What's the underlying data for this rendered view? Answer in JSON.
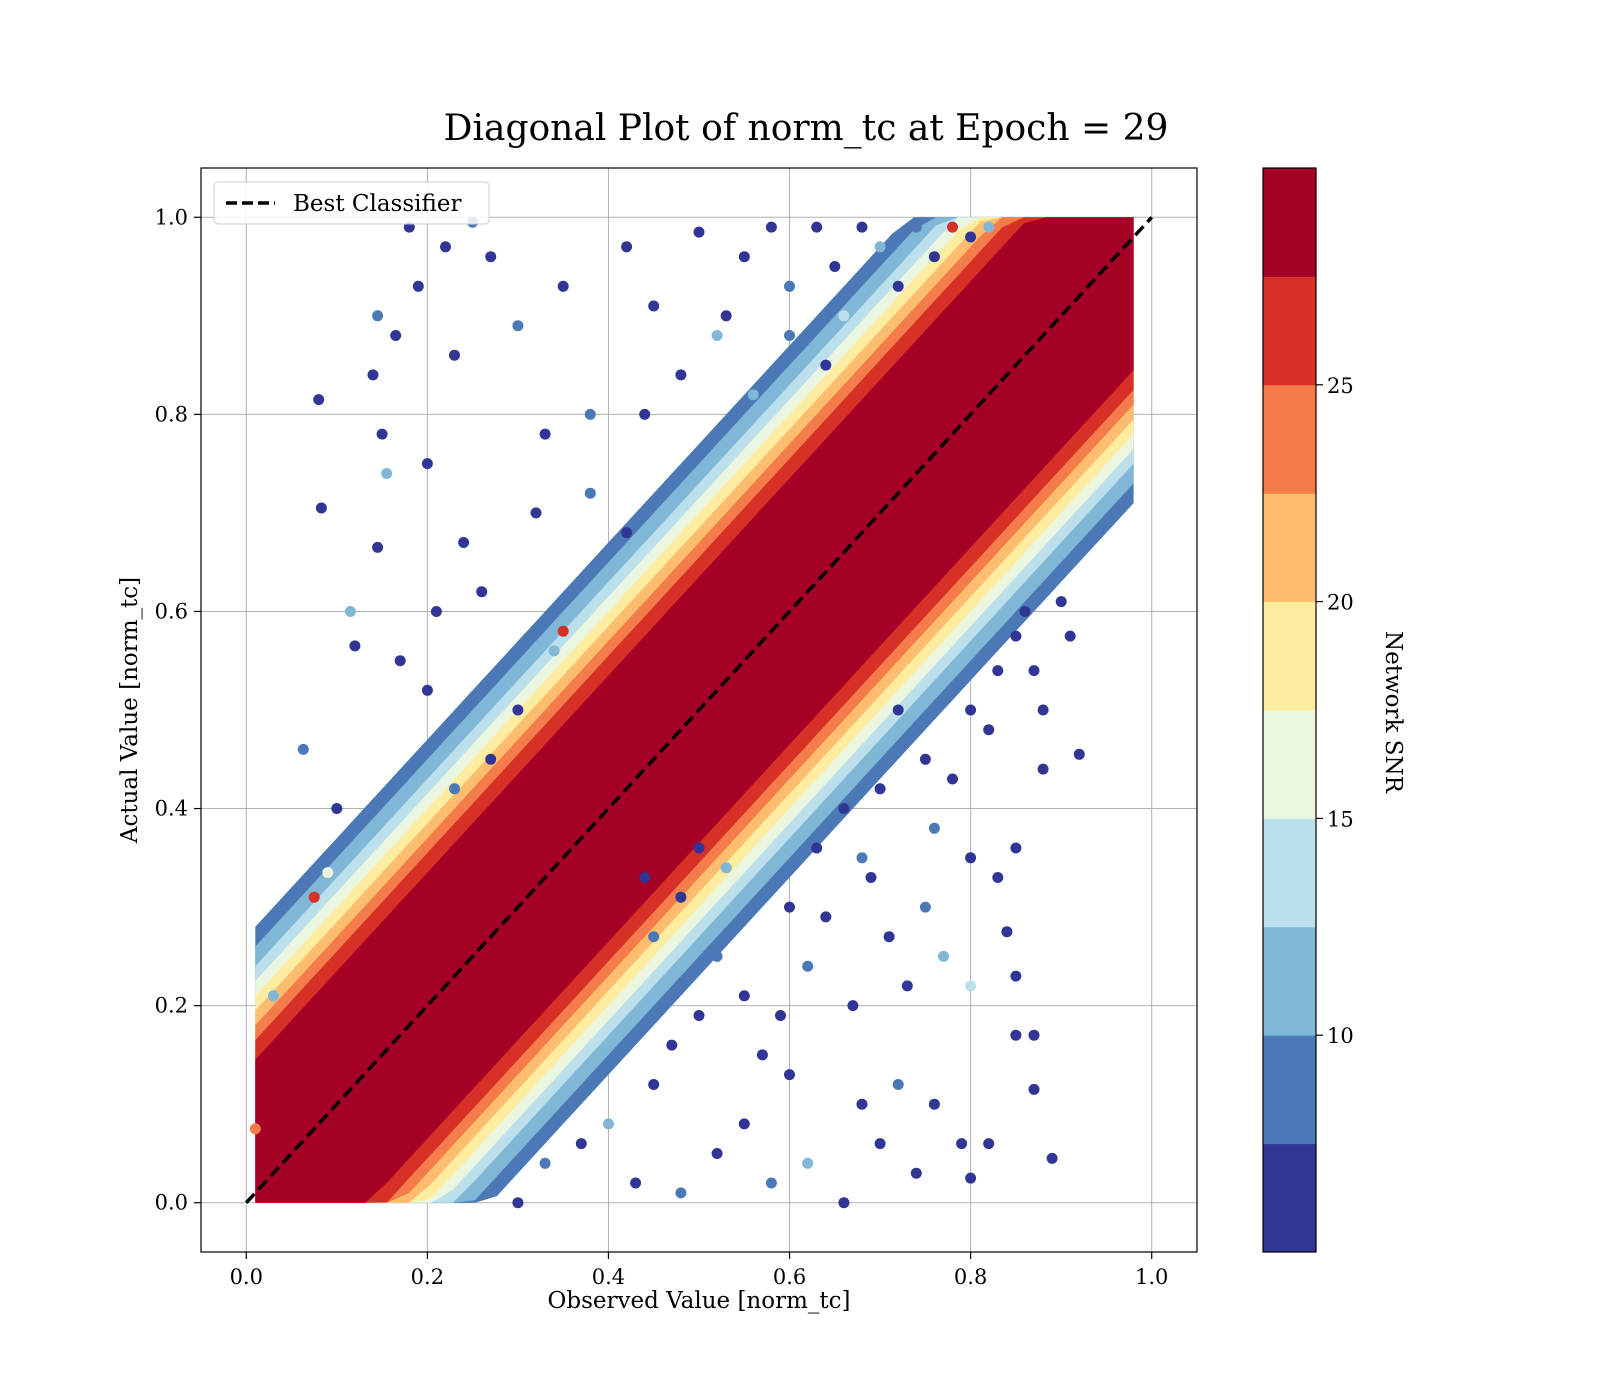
{
  "chart_data": {
    "type": "scatter",
    "title": "Diagonal Plot of norm_tc at Epoch = 29",
    "xlabel": "Observed Value [norm_tc]",
    "ylabel": "Actual Value [norm_tc]",
    "xlim": [
      -0.05,
      1.05
    ],
    "ylim": [
      -0.05,
      1.05
    ],
    "xticks": [
      "0.0",
      "0.2",
      "0.4",
      "0.6",
      "0.8",
      "1.0"
    ],
    "yticks": [
      "0.0",
      "0.2",
      "0.4",
      "0.6",
      "0.8",
      "1.0"
    ],
    "grid": true,
    "legend": {
      "placement": "upper-left",
      "entries": [
        "Best Classifier"
      ]
    },
    "reference_line": {
      "name": "Best Classifier",
      "style": "dashed",
      "color": "#000000",
      "x": [
        0.0,
        1.0
      ],
      "y": [
        0.0,
        1.0
      ]
    },
    "colorbar": {
      "label": "Network SNR",
      "range": [
        4,
        30
      ],
      "ticks": [
        "10",
        "15",
        "20",
        "25"
      ],
      "tick_values": [
        10,
        15,
        20,
        25
      ],
      "bins": [
        {
          "from": 4,
          "to": 6.5,
          "color": "#313695"
        },
        {
          "from": 6.5,
          "to": 9,
          "color": "#4a79b6"
        },
        {
          "from": 9,
          "to": 11.5,
          "color": "#80b6d6"
        },
        {
          "from": 11.5,
          "to": 14,
          "color": "#bce0eb"
        },
        {
          "from": 14,
          "to": 16.5,
          "color": "#eaf6e0"
        },
        {
          "from": 16.5,
          "to": 19,
          "color": "#feeca0"
        },
        {
          "from": 19,
          "to": 21.5,
          "color": "#fdbd6f"
        },
        {
          "from": 21.5,
          "to": 24,
          "color": "#f47c4a"
        },
        {
          "from": 24,
          "to": 26.5,
          "color": "#d73127"
        },
        {
          "from": 26.5,
          "to": 30,
          "color": "#a50026"
        }
      ]
    },
    "bands": [
      {
        "snr": 28,
        "x_low": 0.01,
        "x_high": 0.98,
        "halfwidth": 0.135,
        "color": "#a50026"
      },
      {
        "snr": 25,
        "halfwidth": 0.155,
        "color": "#d73127"
      },
      {
        "snr": 23,
        "halfwidth": 0.17,
        "color": "#f47c4a"
      },
      {
        "snr": 20,
        "halfwidth": 0.185,
        "color": "#fdbd6f"
      },
      {
        "snr": 18,
        "halfwidth": 0.2,
        "color": "#feeca0"
      },
      {
        "snr": 15,
        "halfwidth": 0.215,
        "color": "#eaf6e0"
      },
      {
        "snr": 13,
        "halfwidth": 0.23,
        "color": "#bce0eb"
      },
      {
        "snr": 10,
        "halfwidth": 0.25,
        "color": "#80b6d6"
      },
      {
        "snr": 8,
        "halfwidth": 0.27,
        "color": "#4a79b6"
      }
    ],
    "outlier_points": [
      [
        0.01,
        0.075,
        22
      ],
      [
        0.03,
        0.21,
        10
      ],
      [
        0.063,
        0.46,
        8
      ],
      [
        0.08,
        0.815,
        5
      ],
      [
        0.083,
        0.705,
        5
      ],
      [
        0.075,
        0.31,
        24
      ],
      [
        0.09,
        0.335,
        14
      ],
      [
        0.1,
        0.4,
        5
      ],
      [
        0.115,
        0.6,
        10
      ],
      [
        0.12,
        0.565,
        5
      ],
      [
        0.14,
        0.84,
        5
      ],
      [
        0.145,
        0.9,
        8
      ],
      [
        0.15,
        0.78,
        5
      ],
      [
        0.155,
        0.74,
        10
      ],
      [
        0.145,
        0.665,
        5
      ],
      [
        0.165,
        0.88,
        5
      ],
      [
        0.18,
        0.99,
        5
      ],
      [
        0.19,
        0.93,
        5
      ],
      [
        0.2,
        0.75,
        5
      ],
      [
        0.22,
        0.97,
        5
      ],
      [
        0.23,
        0.86,
        5
      ],
      [
        0.24,
        0.67,
        5
      ],
      [
        0.25,
        0.995,
        8
      ],
      [
        0.27,
        0.96,
        5
      ],
      [
        0.3,
        0.89,
        8
      ],
      [
        0.33,
        0.78,
        5
      ],
      [
        0.35,
        0.93,
        5
      ],
      [
        0.38,
        0.8,
        8
      ],
      [
        0.42,
        0.97,
        5
      ],
      [
        0.45,
        0.91,
        5
      ],
      [
        0.5,
        0.985,
        5
      ],
      [
        0.52,
        0.88,
        10
      ],
      [
        0.55,
        0.96,
        5
      ],
      [
        0.58,
        0.99,
        5
      ],
      [
        0.6,
        0.93,
        8
      ],
      [
        0.63,
        0.99,
        5
      ],
      [
        0.65,
        0.95,
        5
      ],
      [
        0.68,
        0.99,
        5
      ],
      [
        0.7,
        0.97,
        10
      ],
      [
        0.72,
        0.93,
        5
      ],
      [
        0.74,
        0.99,
        8
      ],
      [
        0.76,
        0.96,
        5
      ],
      [
        0.78,
        0.99,
        24
      ],
      [
        0.8,
        0.98,
        5
      ],
      [
        0.82,
        0.99,
        10
      ],
      [
        0.3,
        0.5,
        5
      ],
      [
        0.34,
        0.56,
        10
      ],
      [
        0.27,
        0.45,
        5
      ],
      [
        0.26,
        0.62,
        5
      ],
      [
        0.32,
        0.7,
        5
      ],
      [
        0.38,
        0.72,
        8
      ],
      [
        0.42,
        0.68,
        5
      ],
      [
        0.44,
        0.8,
        5
      ],
      [
        0.48,
        0.84,
        5
      ],
      [
        0.5,
        0.76,
        8
      ],
      [
        0.56,
        0.82,
        10
      ],
      [
        0.53,
        0.9,
        5
      ],
      [
        0.6,
        0.88,
        8
      ],
      [
        0.64,
        0.85,
        5
      ],
      [
        0.66,
        0.9,
        12
      ],
      [
        0.35,
        0.58,
        24
      ],
      [
        0.23,
        0.42,
        8
      ],
      [
        0.2,
        0.52,
        5
      ],
      [
        0.17,
        0.55,
        5
      ],
      [
        0.21,
        0.6,
        5
      ],
      [
        0.3,
        0.0,
        5
      ],
      [
        0.33,
        0.04,
        8
      ],
      [
        0.37,
        0.06,
        5
      ],
      [
        0.4,
        0.08,
        10
      ],
      [
        0.43,
        0.02,
        5
      ],
      [
        0.45,
        0.12,
        5
      ],
      [
        0.48,
        0.01,
        8
      ],
      [
        0.52,
        0.05,
        5
      ],
      [
        0.55,
        0.08,
        5
      ],
      [
        0.58,
        0.02,
        8
      ],
      [
        0.6,
        0.13,
        5
      ],
      [
        0.62,
        0.04,
        10
      ],
      [
        0.66,
        0.0,
        5
      ],
      [
        0.68,
        0.1,
        5
      ],
      [
        0.7,
        0.06,
        5
      ],
      [
        0.72,
        0.12,
        8
      ],
      [
        0.74,
        0.03,
        5
      ],
      [
        0.76,
        0.1,
        5
      ],
      [
        0.79,
        0.06,
        5
      ],
      [
        0.8,
        0.025,
        5
      ],
      [
        0.82,
        0.06,
        5
      ],
      [
        0.85,
        0.17,
        5
      ],
      [
        0.87,
        0.17,
        5
      ],
      [
        0.87,
        0.115,
        5
      ],
      [
        0.89,
        0.045,
        5
      ],
      [
        0.59,
        0.19,
        5
      ],
      [
        0.62,
        0.24,
        8
      ],
      [
        0.64,
        0.29,
        5
      ],
      [
        0.67,
        0.2,
        5
      ],
      [
        0.69,
        0.33,
        5
      ],
      [
        0.71,
        0.27,
        5
      ],
      [
        0.73,
        0.22,
        5
      ],
      [
        0.75,
        0.3,
        8
      ],
      [
        0.77,
        0.25,
        10
      ],
      [
        0.8,
        0.22,
        12
      ],
      [
        0.8,
        0.35,
        5
      ],
      [
        0.83,
        0.33,
        5
      ],
      [
        0.84,
        0.275,
        5
      ],
      [
        0.85,
        0.36,
        5
      ],
      [
        0.88,
        0.5,
        5
      ],
      [
        0.9,
        0.61,
        5
      ],
      [
        0.91,
        0.575,
        5
      ],
      [
        0.92,
        0.455,
        5
      ],
      [
        0.88,
        0.44,
        5
      ],
      [
        0.85,
        0.23,
        5
      ],
      [
        0.72,
        0.5,
        5
      ],
      [
        0.75,
        0.45,
        5
      ],
      [
        0.78,
        0.43,
        5
      ],
      [
        0.8,
        0.5,
        5
      ],
      [
        0.83,
        0.54,
        5
      ],
      [
        0.85,
        0.575,
        5
      ],
      [
        0.87,
        0.54,
        5
      ],
      [
        0.86,
        0.6,
        5
      ],
      [
        0.82,
        0.48,
        5
      ],
      [
        0.76,
        0.38,
        8
      ],
      [
        0.66,
        0.4,
        5
      ],
      [
        0.68,
        0.35,
        8
      ],
      [
        0.7,
        0.42,
        5
      ],
      [
        0.63,
        0.36,
        5
      ],
      [
        0.6,
        0.3,
        5
      ],
      [
        0.55,
        0.21,
        5
      ],
      [
        0.52,
        0.25,
        8
      ],
      [
        0.5,
        0.19,
        5
      ],
      [
        0.47,
        0.16,
        5
      ],
      [
        0.57,
        0.15,
        5
      ],
      [
        0.44,
        0.33,
        5
      ],
      [
        0.45,
        0.27,
        8
      ],
      [
        0.48,
        0.31,
        5
      ],
      [
        0.5,
        0.36,
        5
      ],
      [
        0.53,
        0.34,
        10
      ]
    ]
  }
}
